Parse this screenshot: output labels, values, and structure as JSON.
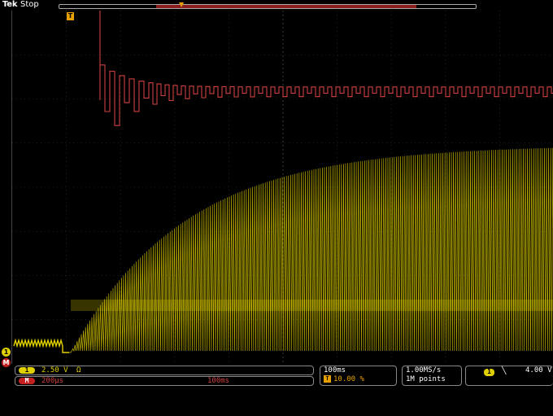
{
  "header": {
    "brand": "Tek",
    "status": "Stop"
  },
  "markers": {
    "trigger_position": "T",
    "ch1": "1",
    "math": "M"
  },
  "ch1": {
    "badge": "1",
    "scale": "2.50 V",
    "coupling_icon": "Ω",
    "color": "#e0d000"
  },
  "math": {
    "badge": "M",
    "scale": "200µs",
    "position": "100ms",
    "color": "#c52020"
  },
  "timebase": {
    "scale": "100ms",
    "trigger_icon": "T",
    "trigger_position": "10.00 %"
  },
  "acquisition": {
    "sample_rate": "1.00MS/s",
    "record_length": "1M points"
  },
  "trigger": {
    "source": "1",
    "slope": "falling-edge-icon",
    "slope_glyph": "╲",
    "level": "4.00 V"
  },
  "colors": {
    "grid": "#3a3a3a",
    "ch1": "#e0d000",
    "math": "#d04040",
    "trigger": "#e8a000",
    "background": "#000000"
  }
}
